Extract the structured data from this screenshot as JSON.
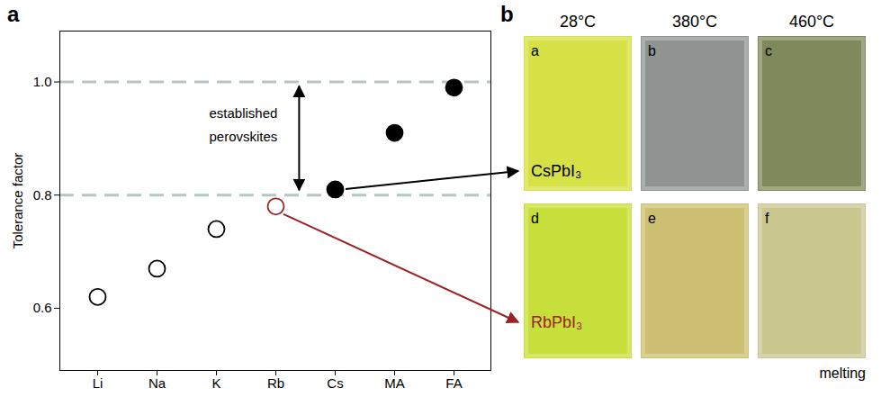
{
  "chart_data": {
    "type": "scatter",
    "panel_label": "a",
    "y_label": "Tolerance factor",
    "categories": [
      "Li",
      "Na",
      "K",
      "Rb",
      "Cs",
      "MA",
      "FA"
    ],
    "series": [
      {
        "color": "#000000",
        "marker": "open",
        "values": [
          0.62,
          0.67,
          0.74,
          null,
          null,
          null,
          null
        ]
      },
      {
        "color": "#9b2226",
        "marker": "open",
        "values": [
          null,
          null,
          null,
          0.78,
          null,
          null,
          null
        ]
      },
      {
        "color": "#000000",
        "marker": "filled",
        "values": [
          null,
          null,
          null,
          null,
          0.81,
          0.91,
          0.99
        ]
      }
    ],
    "ylim": [
      0.49,
      1.09
    ],
    "yticks": [
      0.6,
      0.8,
      {
        "value": 1.0,
        "label": "1.0"
      }
    ],
    "grid": false,
    "reference_lines": [
      0.8,
      1.0
    ],
    "annotation": {
      "text": "established perovskites",
      "span": [
        0.8,
        1.0
      ]
    }
  },
  "photo_panel": {
    "panel_label": "b",
    "columns": [
      "28°C",
      "380°C",
      "460°C"
    ],
    "rows": [
      {
        "material": "CsPbI₃",
        "category": "Cs",
        "photos": [
          "a",
          "b",
          "c"
        ]
      },
      {
        "material": "RbPbI₃",
        "category": "Rb",
        "photos": [
          "d",
          "e",
          "f"
        ]
      }
    ],
    "note": {
      "text": "melting",
      "photo": "f"
    }
  }
}
